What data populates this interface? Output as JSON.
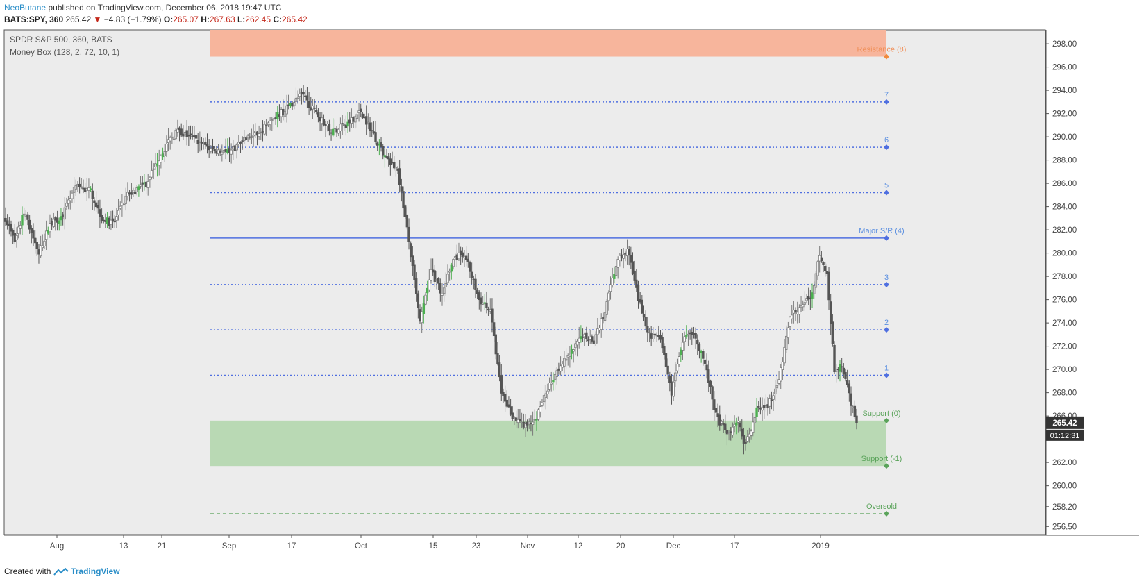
{
  "header": {
    "author": "NeoButane",
    "published": "published on TradingView.com, December 06, 2018 19:47 UTC",
    "symbol": "BATS:SPY, 360",
    "last": "265.42",
    "change": "−4.83 (−1.79%)",
    "o_label": "O:",
    "o": "265.07",
    "h_label": "H:",
    "h": "267.63",
    "l_label": "L:",
    "l": "262.45",
    "c_label": "C:",
    "c": "265.42"
  },
  "legend": {
    "series": "SPDR S&P 500, 360, BATS",
    "indicator": "Money Box (128, 2, 72, 10, 1)"
  },
  "footer": {
    "created_with": "Created with",
    "brand": "TradingView"
  },
  "colors": {
    "up_candle": "#4caf50",
    "down_candle": "#555555",
    "resistance_zone": "#f7b59c",
    "support_zone": "#b9d9b4",
    "level_blue": "#4f6fe0",
    "support_green": "#5aa35a",
    "price_tag": "#333333"
  },
  "price_tag": {
    "price": "265.42",
    "timer": "01:12:31"
  },
  "chart_data": {
    "type": "candlestick",
    "title": "SPDR S&P 500, 360, BATS",
    "x_tick_labels": [
      "Aug",
      "13",
      "21",
      "Sep",
      "17",
      "Oct",
      "15",
      "23",
      "Nov",
      "12",
      "20",
      "Dec",
      "17",
      "2019"
    ],
    "y_tick_labels": [
      "298.00",
      "296.00",
      "294.00",
      "292.00",
      "290.00",
      "288.00",
      "286.00",
      "284.00",
      "282.00",
      "280.00",
      "278.00",
      "276.00",
      "274.00",
      "272.00",
      "270.00",
      "268.00",
      "266.00",
      "262.00",
      "260.00",
      "258.20",
      "256.50"
    ],
    "ylim": [
      255.8,
      299.2
    ],
    "grid": false,
    "levels": [
      {
        "label": "Resistance (8)",
        "price": 296.9,
        "style": "zone-top"
      },
      {
        "label": "7",
        "price": 293.0,
        "style": "dotted"
      },
      {
        "label": "6",
        "price": 289.1,
        "style": "dotted"
      },
      {
        "label": "5",
        "price": 285.2,
        "style": "dotted"
      },
      {
        "label": "Major S/R (4)",
        "price": 281.3,
        "style": "solid"
      },
      {
        "label": "3",
        "price": 277.3,
        "style": "dotted"
      },
      {
        "label": "2",
        "price": 273.4,
        "style": "dotted"
      },
      {
        "label": "1",
        "price": 269.5,
        "style": "dotted"
      },
      {
        "label": "Support (0)",
        "price": 265.6,
        "style": "zone-top"
      },
      {
        "label": "Support (-1)",
        "price": 261.7,
        "style": "zone-bottom"
      },
      {
        "label": "Oversold",
        "price": 257.6,
        "style": "dashed"
      }
    ],
    "resistance_zone": [
      296.9,
      299.2
    ],
    "support_zone": [
      261.7,
      265.6
    ],
    "waypoints": [
      [
        0,
        283.0
      ],
      [
        5,
        281.0
      ],
      [
        10,
        283.5
      ],
      [
        18,
        280.0
      ],
      [
        24,
        282.5
      ],
      [
        30,
        283.0
      ],
      [
        38,
        285.7
      ],
      [
        46,
        285.3
      ],
      [
        52,
        283.0
      ],
      [
        58,
        282.5
      ],
      [
        66,
        285.0
      ],
      [
        76,
        286.0
      ],
      [
        84,
        288.5
      ],
      [
        92,
        290.5
      ],
      [
        100,
        290.0
      ],
      [
        110,
        289.0
      ],
      [
        120,
        288.6
      ],
      [
        130,
        289.8
      ],
      [
        140,
        290.8
      ],
      [
        150,
        292.2
      ],
      [
        160,
        293.6
      ],
      [
        168,
        292.0
      ],
      [
        176,
        290.5
      ],
      [
        184,
        291.0
      ],
      [
        192,
        292.2
      ],
      [
        198,
        290.5
      ],
      [
        206,
        288.0
      ],
      [
        212,
        287.2
      ],
      [
        218,
        281.0
      ],
      [
        224,
        274.0
      ],
      [
        230,
        278.5
      ],
      [
        236,
        276.5
      ],
      [
        242,
        279.5
      ],
      [
        248,
        280.0
      ],
      [
        256,
        276.0
      ],
      [
        262,
        275.0
      ],
      [
        268,
        268.0
      ],
      [
        274,
        266.0
      ],
      [
        280,
        265.0
      ],
      [
        286,
        265.5
      ],
      [
        292,
        268.0
      ],
      [
        298,
        270.0
      ],
      [
        304,
        271.0
      ],
      [
        312,
        273.0
      ],
      [
        318,
        272.5
      ],
      [
        324,
        275.0
      ],
      [
        330,
        279.0
      ],
      [
        336,
        280.5
      ],
      [
        342,
        276.0
      ],
      [
        348,
        273.0
      ],
      [
        354,
        272.5
      ],
      [
        360,
        268.0
      ],
      [
        366,
        272.5
      ],
      [
        372,
        273.0
      ],
      [
        378,
        270.5
      ],
      [
        384,
        266.0
      ],
      [
        390,
        264.5
      ],
      [
        396,
        265.3
      ],
      [
        400,
        263.5
      ],
      [
        406,
        266.5
      ],
      [
        412,
        267.0
      ],
      [
        418,
        269.0
      ],
      [
        424,
        274.5
      ],
      [
        430,
        275.5
      ],
      [
        436,
        276.5
      ],
      [
        440,
        280.0
      ],
      [
        444,
        278.0
      ],
      [
        448,
        270.0
      ],
      [
        452,
        270.5
      ],
      [
        458,
        266.5
      ],
      [
        460,
        265.42
      ]
    ]
  }
}
